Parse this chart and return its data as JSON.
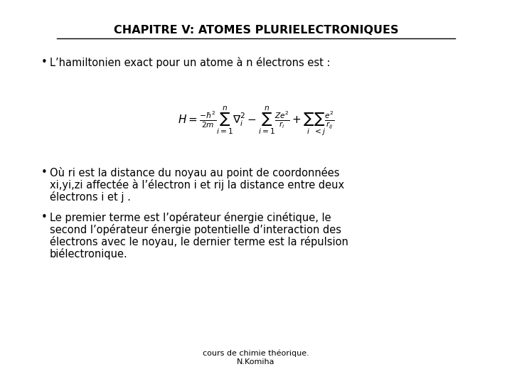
{
  "title": "CHAPITRE V: ATOMES PLURIELECTRONIQUES",
  "title_fontsize": 11.5,
  "bg_color": "#ffffff",
  "text_color": "#000000",
  "bullet1": "L’hamiltonien exact pour un atome à n électrons est :",
  "bullet2_line1": "Où ri est la distance du noyau au point de coordonnées",
  "bullet2_line2": "xi,yi,zi affectée à l’électron i et rij la distance entre deux",
  "bullet2_line3": "électrons i et j .",
  "bullet3_line1": "Le premier terme est l’opérateur énergie cinétique, le",
  "bullet3_line2": "second l’opérateur énergie potentielle d’interaction des",
  "bullet3_line3": "électrons avec le noyau, le dernier terme est la répulsion",
  "bullet3_line4": "biélectronique.",
  "footer_line1": "cours de chimie théorique.",
  "footer_line2": "N.Komiha",
  "body_fontsize": 10.5,
  "footer_fontsize": 8,
  "formula_fontsize": 11
}
